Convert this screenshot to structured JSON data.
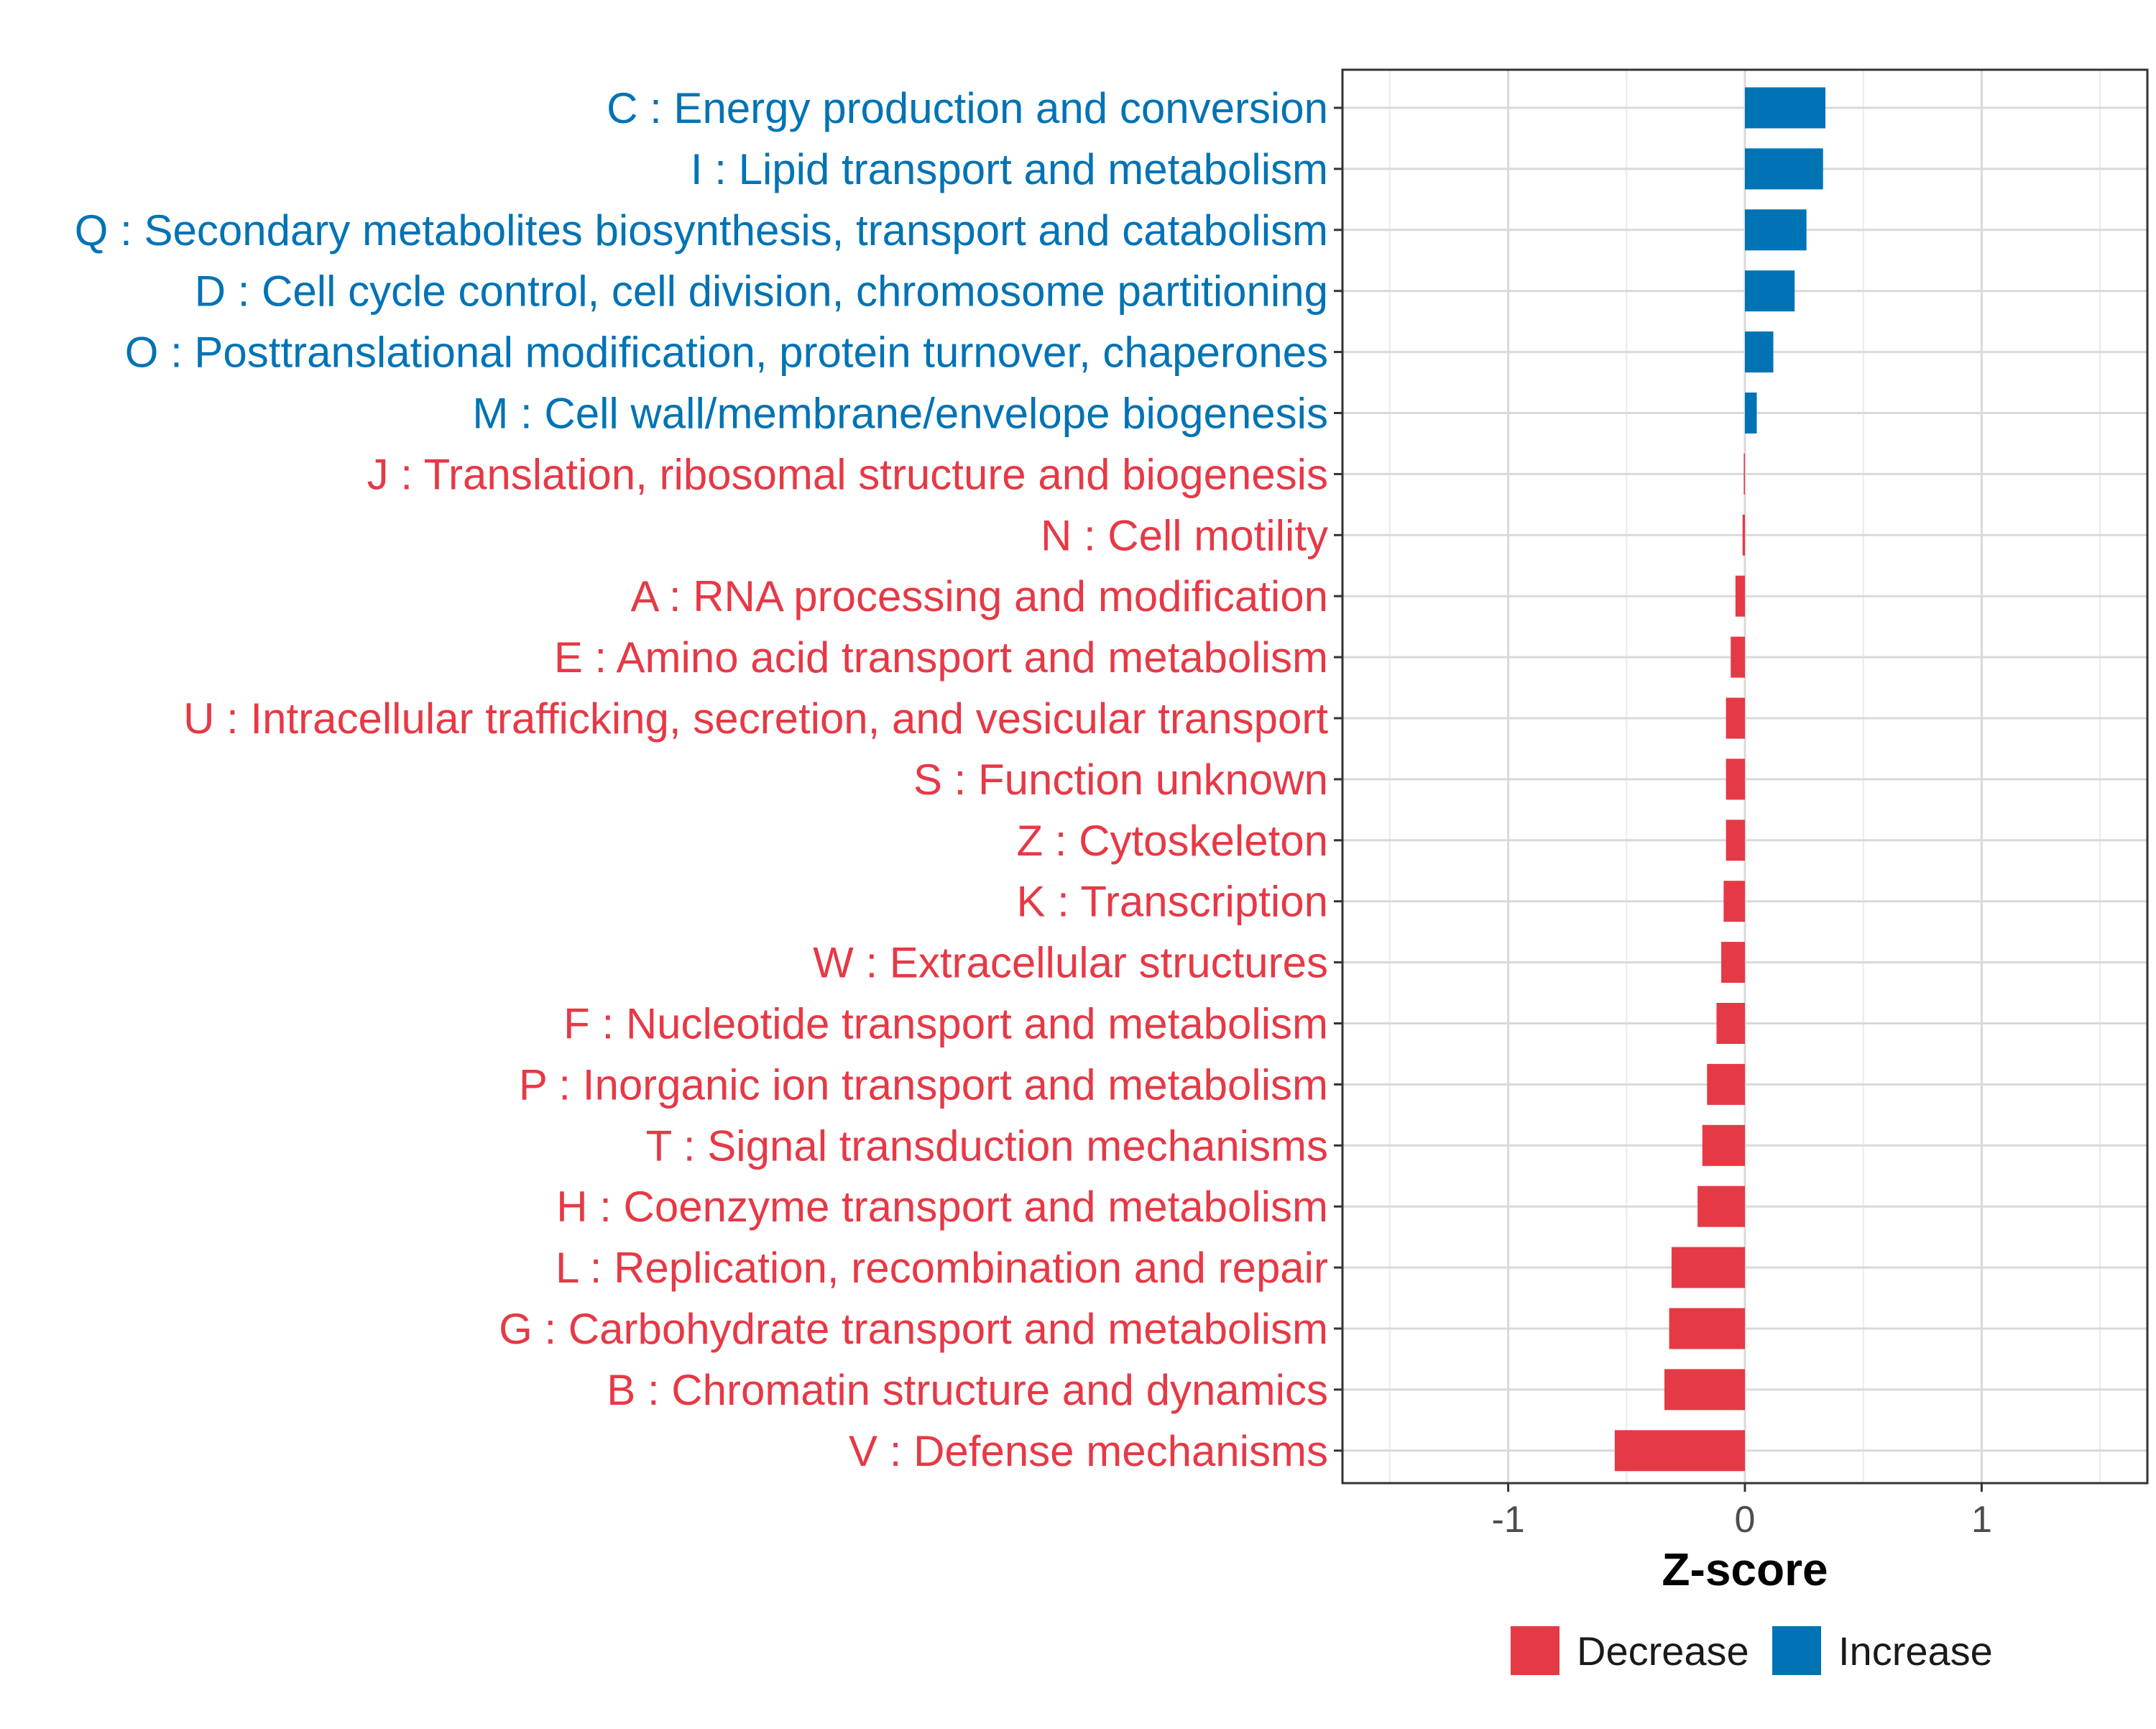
{
  "chart_data": {
    "type": "bar",
    "orientation": "horizontal",
    "title": "",
    "xlabel": "Z-score",
    "ylabel": "",
    "xlim": [
      -1.7,
      1.7
    ],
    "xticks": [
      -1,
      0,
      1
    ],
    "xtick_labels": [
      "-1",
      "0",
      "1"
    ],
    "grid": true,
    "colors": {
      "Increase": "#0073B5",
      "Decrease": "#E63946"
    },
    "categories": [
      "C : Energy production and conversion",
      "I : Lipid transport and metabolism",
      "Q : Secondary metabolites biosynthesis, transport and catabolism",
      "D : Cell cycle control, cell division, chromosome partitioning",
      "O : Posttranslational modification, protein turnover, chaperones",
      "M : Cell wall/membrane/envelope biogenesis",
      "J : Translation, ribosomal structure and biogenesis",
      "N : Cell motility",
      "A : RNA processing and modification",
      "E : Amino acid transport and metabolism",
      "U : Intracellular trafficking, secretion, and vesicular transport",
      "S : Function unknown",
      "Z : Cytoskeleton",
      "K : Transcription",
      "W : Extracellular structures",
      "F : Nucleotide transport and metabolism",
      "P : Inorganic ion transport and metabolism",
      "T : Signal transduction mechanisms",
      "H : Coenzyme transport and metabolism",
      "L : Replication, recombination and repair",
      "G : Carbohydrate transport and metabolism",
      "B : Chromatin structure and dynamics",
      "V : Defense mechanisms"
    ],
    "values": [
      0.34,
      0.33,
      0.26,
      0.21,
      0.12,
      0.05,
      -0.005,
      -0.01,
      -0.04,
      -0.06,
      -0.08,
      -0.08,
      -0.08,
      -0.09,
      -0.1,
      -0.12,
      -0.16,
      -0.18,
      -0.2,
      -0.31,
      -0.32,
      -0.34,
      -0.55
    ],
    "groups": [
      "Increase",
      "Increase",
      "Increase",
      "Increase",
      "Increase",
      "Increase",
      "Decrease",
      "Decrease",
      "Decrease",
      "Decrease",
      "Decrease",
      "Decrease",
      "Decrease",
      "Decrease",
      "Decrease",
      "Decrease",
      "Decrease",
      "Decrease",
      "Decrease",
      "Decrease",
      "Decrease",
      "Decrease",
      "Decrease"
    ],
    "legend": {
      "position": "bottom",
      "entries": [
        {
          "label": "Decrease",
          "color": "#E63946"
        },
        {
          "label": "Increase",
          "color": "#0073B5"
        }
      ]
    }
  }
}
